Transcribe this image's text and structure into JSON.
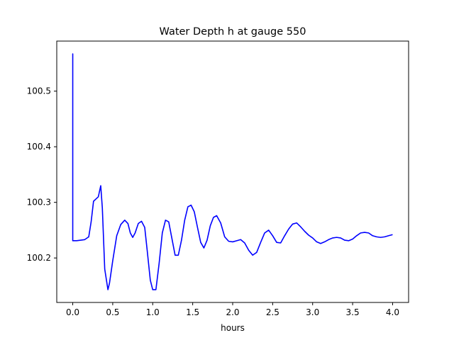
{
  "chart_data": {
    "type": "line",
    "title": "Water Depth h at gauge 550",
    "xlabel": "hours",
    "ylabel": "",
    "xlim": [
      -0.2,
      4.2
    ],
    "ylim": [
      100.12,
      100.59
    ],
    "grid": false,
    "xticks": [
      0.0,
      0.5,
      1.0,
      1.5,
      2.0,
      2.5,
      3.0,
      3.5,
      4.0
    ],
    "xtick_labels": [
      "0.0",
      "0.5",
      "1.0",
      "1.5",
      "2.0",
      "2.5",
      "3.0",
      "3.5",
      "4.0"
    ],
    "yticks": [
      100.2,
      100.3,
      100.4,
      100.5
    ],
    "ytick_labels": [
      "100.2",
      "100.3",
      "100.4",
      "100.5"
    ],
    "series": [
      {
        "color": "#0000ff",
        "x": [
          0.0,
          0.0,
          0.0,
          0.05,
          0.1,
          0.15,
          0.2,
          0.23,
          0.26,
          0.29,
          0.32,
          0.35,
          0.37,
          0.4,
          0.44,
          0.46,
          0.5,
          0.55,
          0.6,
          0.65,
          0.69,
          0.72,
          0.75,
          0.78,
          0.82,
          0.86,
          0.9,
          0.93,
          0.97,
          1.0,
          1.04,
          1.08,
          1.12,
          1.16,
          1.2,
          1.24,
          1.28,
          1.32,
          1.36,
          1.4,
          1.44,
          1.48,
          1.52,
          1.56,
          1.6,
          1.64,
          1.68,
          1.72,
          1.76,
          1.8,
          1.85,
          1.9,
          1.95,
          2.0,
          2.05,
          2.1,
          2.15,
          2.2,
          2.25,
          2.3,
          2.35,
          2.4,
          2.45,
          2.5,
          2.55,
          2.6,
          2.65,
          2.7,
          2.75,
          2.8,
          2.85,
          2.9,
          2.95,
          3.0,
          3.05,
          3.1,
          3.15,
          3.2,
          3.25,
          3.3,
          3.35,
          3.4,
          3.45,
          3.5,
          3.55,
          3.6,
          3.65,
          3.7,
          3.75,
          3.8,
          3.85,
          3.9,
          3.95,
          4.0
        ],
        "y": [
          100.231,
          100.567,
          100.231,
          100.231,
          100.232,
          100.233,
          100.238,
          100.265,
          100.302,
          100.306,
          100.31,
          100.33,
          100.29,
          100.18,
          100.143,
          100.155,
          100.195,
          100.24,
          100.26,
          100.268,
          100.262,
          100.245,
          100.237,
          100.245,
          100.262,
          100.266,
          100.255,
          100.215,
          100.16,
          100.143,
          100.143,
          100.19,
          100.245,
          100.268,
          100.265,
          100.235,
          100.205,
          100.205,
          100.232,
          100.268,
          100.292,
          100.295,
          100.283,
          100.255,
          100.228,
          100.218,
          100.232,
          100.258,
          100.273,
          100.276,
          100.263,
          100.238,
          100.23,
          100.229,
          100.231,
          100.233,
          100.227,
          100.214,
          100.205,
          100.21,
          100.228,
          100.245,
          100.25,
          100.24,
          100.228,
          100.227,
          100.24,
          100.252,
          100.261,
          100.263,
          100.256,
          100.248,
          100.241,
          100.236,
          100.229,
          100.226,
          100.229,
          100.233,
          100.236,
          100.237,
          100.236,
          100.232,
          100.231,
          100.234,
          100.24,
          100.245,
          100.246,
          100.245,
          100.24,
          100.238,
          100.237,
          100.238,
          100.24,
          100.242
        ]
      }
    ]
  }
}
